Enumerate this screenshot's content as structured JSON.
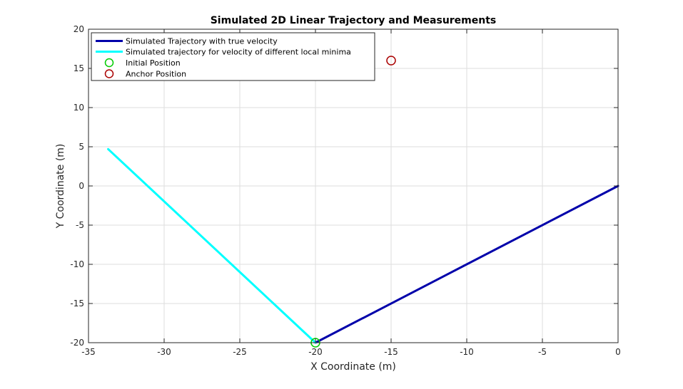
{
  "chart_data": {
    "type": "line",
    "title": "Simulated 2D Linear Trajectory and Measurements",
    "xlabel": "X Coordinate (m)",
    "ylabel": "Y Coordinate (m)",
    "xlim": [
      -35,
      0
    ],
    "ylim": [
      -20,
      20
    ],
    "xticks": [
      -35,
      -30,
      -25,
      -20,
      -15,
      -10,
      -5,
      0
    ],
    "yticks": [
      -20,
      -15,
      -10,
      -5,
      0,
      5,
      10,
      15,
      20
    ],
    "grid": true,
    "legend_position": "top-left",
    "series": [
      {
        "name": "Simulated Trajectory with true velocity",
        "kind": "line",
        "color": "#0000aa",
        "x": [
          -20,
          0
        ],
        "y": [
          -20,
          0
        ]
      },
      {
        "name": "Simulated trajectory for velocity of different local minima",
        "kind": "line",
        "color": "#00ffff",
        "x": [
          -20,
          -33.7
        ],
        "y": [
          -20,
          4.7
        ]
      },
      {
        "name": "Initial Position",
        "kind": "marker",
        "color": "#00cc00",
        "x": [
          -20
        ],
        "y": [
          -20
        ]
      },
      {
        "name": "Anchor Position",
        "kind": "marker",
        "color": "#aa0000",
        "x": [
          -15
        ],
        "y": [
          16
        ]
      }
    ]
  }
}
